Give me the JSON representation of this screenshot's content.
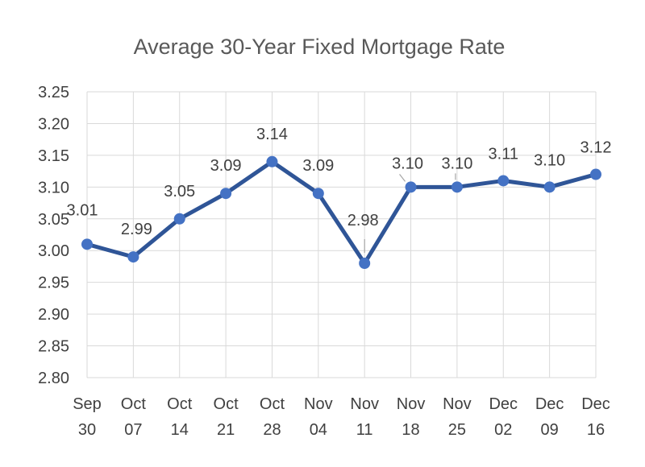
{
  "chart_data": {
    "type": "line",
    "title": "Average 30-Year Fixed Mortgage Rate",
    "categories": [
      [
        "Sep",
        "30"
      ],
      [
        "Oct",
        "07"
      ],
      [
        "Oct",
        "14"
      ],
      [
        "Oct",
        "21"
      ],
      [
        "Oct",
        "28"
      ],
      [
        "Nov",
        "04"
      ],
      [
        "Nov",
        "11"
      ],
      [
        "Nov",
        "18"
      ],
      [
        "Nov",
        "25"
      ],
      [
        "Dec",
        "02"
      ],
      [
        "Dec",
        "09"
      ],
      [
        "Dec",
        "16"
      ]
    ],
    "series": [
      {
        "values": [
          3.01,
          2.99,
          3.05,
          3.09,
          3.14,
          3.09,
          2.98,
          3.1,
          3.1,
          3.11,
          3.1,
          3.12
        ],
        "data_labels": [
          "3.01",
          "2.99",
          "3.05",
          "3.09",
          "3.14",
          "3.09",
          "2.98",
          "3.10",
          "3.10",
          "3.11",
          "3.10",
          "3.12"
        ],
        "color": "#2F5597"
      }
    ],
    "ylim": [
      2.8,
      3.25
    ],
    "yticks": [
      2.8,
      2.85,
      2.9,
      2.95,
      3.0,
      3.05,
      3.1,
      3.15,
      3.2,
      3.25
    ],
    "ytick_labels": [
      "2.80",
      "2.85",
      "2.90",
      "2.95",
      "3.00",
      "3.05",
      "3.10",
      "3.15",
      "3.20",
      "3.25"
    ],
    "grid": "both",
    "legend": "none",
    "marker_color": "#4472C4",
    "gridline_color": "#D9D9D9"
  }
}
